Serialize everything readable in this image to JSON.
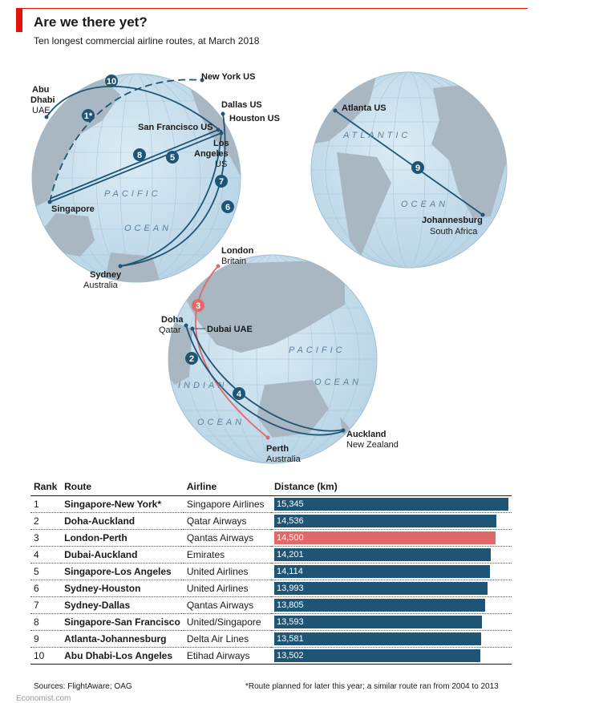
{
  "header": {
    "title": "Are we there yet?",
    "subtitle": "Ten longest commercial airline routes, at March 2018"
  },
  "colors": {
    "accent": "#e3120b",
    "route": "#1f5574",
    "highlight": "#e06a6a",
    "globe": "#cfe3ef",
    "land": "#a9b7c2"
  },
  "map": {
    "cities": {
      "abu_dhabi": [
        "Abu",
        "Dhabi",
        "UAE"
      ],
      "new_york": "New York US",
      "dallas": "Dallas US",
      "houston": "Houston US",
      "san_francisco": "San Francisco US",
      "los_angeles": [
        "Los",
        "Angeles",
        "US"
      ],
      "singapore": "Singapore",
      "sydney": [
        "Sydney",
        "Australia"
      ],
      "atlanta": "Atlanta US",
      "johannesburg": [
        "Johannesburg",
        "South Africa"
      ],
      "london": [
        "London",
        "Britain"
      ],
      "doha": [
        "Doha",
        "Qatar"
      ],
      "dubai": "Dubai UAE",
      "auckland": [
        "Auckland",
        "New Zealand"
      ],
      "perth": [
        "Perth",
        "Australia"
      ]
    },
    "oceans": {
      "pacific_1": "PACIFIC",
      "ocean_1": "OCEAN",
      "atlantic": "ATLANTIC",
      "ocean_2": "OCEAN",
      "pacific_3": "PACIFIC",
      "ocean_3": "OCEAN",
      "indian": "INDIAN",
      "ocean_4": "OCEAN"
    },
    "badges": [
      "1*",
      "2",
      "3",
      "4",
      "5",
      "6",
      "7",
      "8",
      "9",
      "10"
    ]
  },
  "table": {
    "headers": [
      "Rank",
      "Route",
      "Airline",
      "Distance (km)"
    ],
    "max_km": 15345,
    "rows": [
      {
        "rank": "1",
        "route": "Singapore-New York*",
        "airline": "Singapore Airlines",
        "distance": "15,345",
        "km": 15345
      },
      {
        "rank": "2",
        "route": "Doha-Auckland",
        "airline": "Qatar Airways",
        "distance": "14,536",
        "km": 14536
      },
      {
        "rank": "3",
        "route": "London-Perth",
        "airline": "Qantas Airways",
        "distance": "14,500",
        "km": 14500,
        "highlight": true
      },
      {
        "rank": "4",
        "route": "Dubai-Auckland",
        "airline": "Emirates",
        "distance": "14,201",
        "km": 14201
      },
      {
        "rank": "5",
        "route": "Singapore-Los Angeles",
        "airline": "United Airlines",
        "distance": "14,114",
        "km": 14114
      },
      {
        "rank": "6",
        "route": "Sydney-Houston",
        "airline": "United Airlines",
        "distance": "13,993",
        "km": 13993
      },
      {
        "rank": "7",
        "route": "Sydney-Dallas",
        "airline": "Qantas Airways",
        "distance": "13,805",
        "km": 13805
      },
      {
        "rank": "8",
        "route": "Singapore-San Francisco",
        "airline": "United/Singapore",
        "distance": "13,593",
        "km": 13593
      },
      {
        "rank": "9",
        "route": "Atlanta-Johannesburg",
        "airline": "Delta Air Lines",
        "distance": "13,581",
        "km": 13581
      },
      {
        "rank": "10",
        "route": "Abu Dhabi-Los Angeles",
        "airline": "Etihad Airways",
        "distance": "13,502",
        "km": 13502
      }
    ]
  },
  "footer": {
    "sources": "Sources: FlightAware; OAG",
    "note": "*Route planned for later this year; a similar route ran from 2004 to 2013",
    "brand": "Economist.com"
  }
}
